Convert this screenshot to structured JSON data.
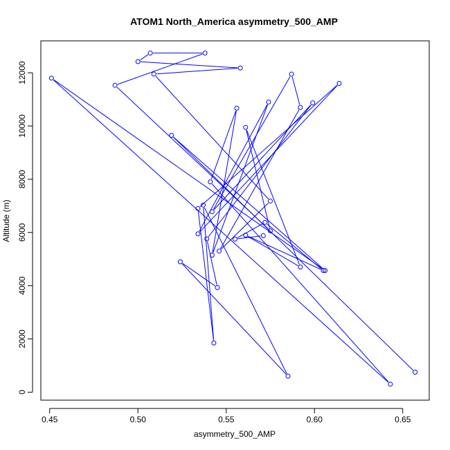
{
  "chart_data": {
    "type": "line",
    "title": "ATOM1 North_America asymmetry_500_AMP",
    "xlabel": "asymmetry_500_AMP",
    "ylabel": "Altitude (m)",
    "xlim": [
      0.445,
      0.665
    ],
    "ylim": [
      -300,
      13200
    ],
    "xticks": [
      0.45,
      0.5,
      0.55,
      0.6,
      0.65
    ],
    "xtick_labels": [
      "0.45",
      "0.50",
      "0.55",
      "0.60",
      "0.65"
    ],
    "yticks": [
      0,
      2000,
      4000,
      6000,
      8000,
      10000,
      12000
    ],
    "ytick_labels": [
      "0",
      "2000",
      "4000",
      "6000",
      "8000",
      "10000",
      "12000"
    ],
    "grid": false,
    "series": [
      {
        "color": "#0000ff",
        "marker": "open-circle",
        "points": [
          {
            "x": 0.657,
            "y": 750
          },
          {
            "x": 0.519,
            "y": 9650
          },
          {
            "x": 0.606,
            "y": 4570
          },
          {
            "x": 0.451,
            "y": 11800
          },
          {
            "x": 0.643,
            "y": 300
          },
          {
            "x": 0.541,
            "y": 7900
          },
          {
            "x": 0.556,
            "y": 10670
          },
          {
            "x": 0.542,
            "y": 5150
          },
          {
            "x": 0.574,
            "y": 10900
          },
          {
            "x": 0.534,
            "y": 5950
          },
          {
            "x": 0.614,
            "y": 11600
          },
          {
            "x": 0.534,
            "y": 6900
          },
          {
            "x": 0.543,
            "y": 1850
          },
          {
            "x": 0.537,
            "y": 7030
          },
          {
            "x": 0.585,
            "y": 600
          },
          {
            "x": 0.524,
            "y": 4900
          },
          {
            "x": 0.545,
            "y": 3930
          },
          {
            "x": 0.539,
            "y": 5760
          },
          {
            "x": 0.599,
            "y": 10870
          },
          {
            "x": 0.542,
            "y": 6780
          },
          {
            "x": 0.587,
            "y": 11950
          },
          {
            "x": 0.592,
            "y": 10700
          },
          {
            "x": 0.546,
            "y": 5300
          },
          {
            "x": 0.575,
            "y": 7180
          },
          {
            "x": 0.509,
            "y": 11950
          },
          {
            "x": 0.558,
            "y": 12180
          },
          {
            "x": 0.5,
            "y": 12420
          },
          {
            "x": 0.507,
            "y": 12740
          },
          {
            "x": 0.538,
            "y": 12740
          },
          {
            "x": 0.487,
            "y": 11530
          },
          {
            "x": 0.575,
            "y": 6060
          },
          {
            "x": 0.561,
            "y": 9950
          },
          {
            "x": 0.592,
            "y": 4700
          },
          {
            "x": 0.561,
            "y": 5900
          },
          {
            "x": 0.605,
            "y": 4570
          },
          {
            "x": 0.572,
            "y": 6380
          },
          {
            "x": 0.555,
            "y": 5750
          },
          {
            "x": 0.571,
            "y": 5880
          }
        ]
      }
    ]
  }
}
